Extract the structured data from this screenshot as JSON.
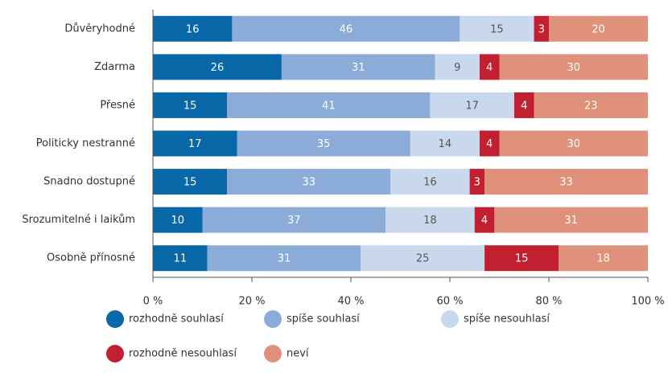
{
  "chart_data": {
    "type": "stacked_barh",
    "categories": [
      "Důvěryhodné",
      "Zdarma",
      "Přesné",
      "Politicky nestranné",
      "Snadno dostupné",
      "Srozumitelné i laikům",
      "Osobně přínosné"
    ],
    "series": [
      {
        "name": "rozhodně souhlasí",
        "color": "#0868a8",
        "label_color": "#ffffff",
        "values": [
          16,
          26,
          15,
          17,
          15,
          10,
          11
        ]
      },
      {
        "name": "spíše souhlasí",
        "color": "#8babd9",
        "label_color": "#ffffff",
        "values": [
          46,
          31,
          41,
          35,
          33,
          37,
          31
        ]
      },
      {
        "name": "spíše nesouhlasí",
        "color": "#cad8ee",
        "label_color": "#555555",
        "values": [
          15,
          9,
          17,
          14,
          16,
          18,
          25
        ]
      },
      {
        "name": "rozhodně nesouhlasí",
        "color": "#c21f30",
        "label_color": "#ffffff",
        "values": [
          3,
          4,
          4,
          4,
          3,
          4,
          15
        ]
      },
      {
        "name": "neví",
        "color": "#e0917b",
        "label_color": "#ffffff",
        "values": [
          20,
          30,
          23,
          30,
          33,
          31,
          18
        ]
      }
    ],
    "xlim": [
      0,
      100
    ],
    "xticks": [
      {
        "value": 0,
        "label": "0 %"
      },
      {
        "value": 20,
        "label": "20 %"
      },
      {
        "value": 40,
        "label": "40 %"
      },
      {
        "value": 60,
        "label": "60 %"
      },
      {
        "value": 80,
        "label": "80 %"
      },
      {
        "value": 100,
        "label": "100 %"
      }
    ],
    "legend": "bottom"
  }
}
